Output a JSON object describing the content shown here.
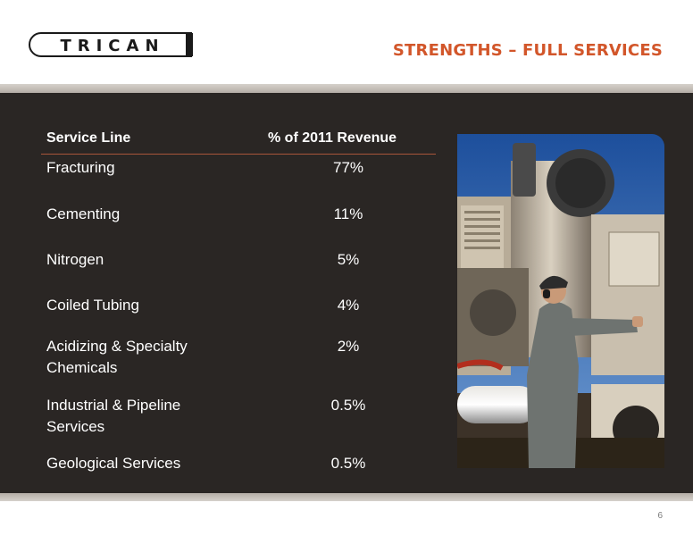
{
  "logo": {
    "text": "TRICAN"
  },
  "slide_title": "STRENGTHS – FULL SERVICES",
  "table": {
    "headers": {
      "service": "Service Line",
      "pct": "% of 2011 Revenue"
    },
    "rows": [
      {
        "service": "Fracturing",
        "pct": "77%"
      },
      {
        "service": "Cementing",
        "pct": "11%"
      },
      {
        "service": "Nitrogen",
        "pct": "5%"
      },
      {
        "service": "Coiled Tubing",
        "pct": "4%"
      },
      {
        "service": "Acidizing & Specialty Chemicals",
        "pct": "2%"
      },
      {
        "service": "Industrial & Pipeline Services",
        "pct": "0.5%"
      },
      {
        "service": "Geological Services",
        "pct": "0.5%"
      }
    ]
  },
  "page_number": "6",
  "colors": {
    "title": "#d2562a",
    "panel": "#2a2624",
    "rule": "#a8553a"
  }
}
